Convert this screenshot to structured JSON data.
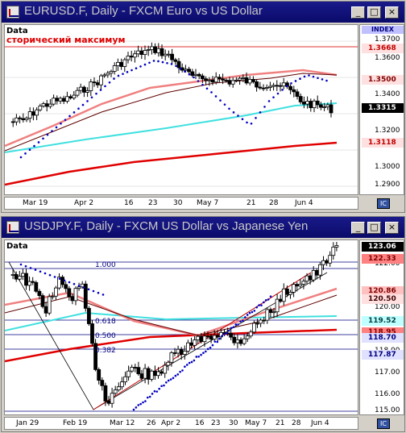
{
  "windows": [
    {
      "title": "EURUSD.F, Daily - FXCM Euro vs US Dollar",
      "data_label": "Data",
      "annotation": "сторический максимум",
      "index_label": "INDEX",
      "axis_ticks": [
        "1.3700",
        "1.3600",
        "1.3400",
        "1.3200",
        "1.3000",
        "1.2900"
      ],
      "price_tags": [
        {
          "value": "1.3668",
          "bg": "#ffe0e0",
          "color": "#c00000"
        },
        {
          "value": "1.3500",
          "bg": "#ffe0e0",
          "color": "#800000"
        },
        {
          "value": "1.3315",
          "bg": "#000000",
          "color": "#ffffff"
        },
        {
          "value": "1.3118",
          "bg": "#ffe0e0",
          "color": "#c00000"
        }
      ],
      "xlabels": [
        "Mar 19",
        "Apr 2",
        "16",
        "23",
        "30",
        "May 7",
        "21",
        "28",
        "Jun 4"
      ]
    },
    {
      "title": "USDJPY.F, Daily - FXCM US Dollar vs Japanese Yen",
      "data_label": "Data",
      "fib_labels": [
        "1.000",
        "0.618",
        "0.500",
        "0.382"
      ],
      "axis_ticks": [
        "122.00",
        "120.00",
        "118.00",
        "117.00",
        "116.00",
        "115.00"
      ],
      "price_tags": [
        {
          "value": "123.06",
          "bg": "#000000",
          "color": "#ffffff"
        },
        {
          "value": "122.33",
          "bg": "#ff8080",
          "color": "#800000"
        },
        {
          "value": "120.86",
          "bg": "#ffc0c0",
          "color": "#800000"
        },
        {
          "value": "120.50",
          "bg": "#ffe0e0",
          "color": "#400000"
        },
        {
          "value": "119.52",
          "bg": "#c0ffff",
          "color": "#004040"
        },
        {
          "value": "118.95",
          "bg": "#ff8080",
          "color": "#800000"
        },
        {
          "value": "118.70",
          "bg": "#e0e0ff",
          "color": "#000080"
        },
        {
          "value": "117.87",
          "bg": "#e0e0ff",
          "color": "#000080"
        }
      ],
      "xlabels": [
        "Jan 29",
        "Feb 19",
        "Mar 12",
        "26",
        "Apr 2",
        "16",
        "23",
        "30",
        "May 7",
        "21",
        "28",
        "Jun 4"
      ]
    }
  ],
  "controls": {
    "minimize": "_",
    "maximize": "□",
    "close": "×",
    "ic": "IC"
  }
}
